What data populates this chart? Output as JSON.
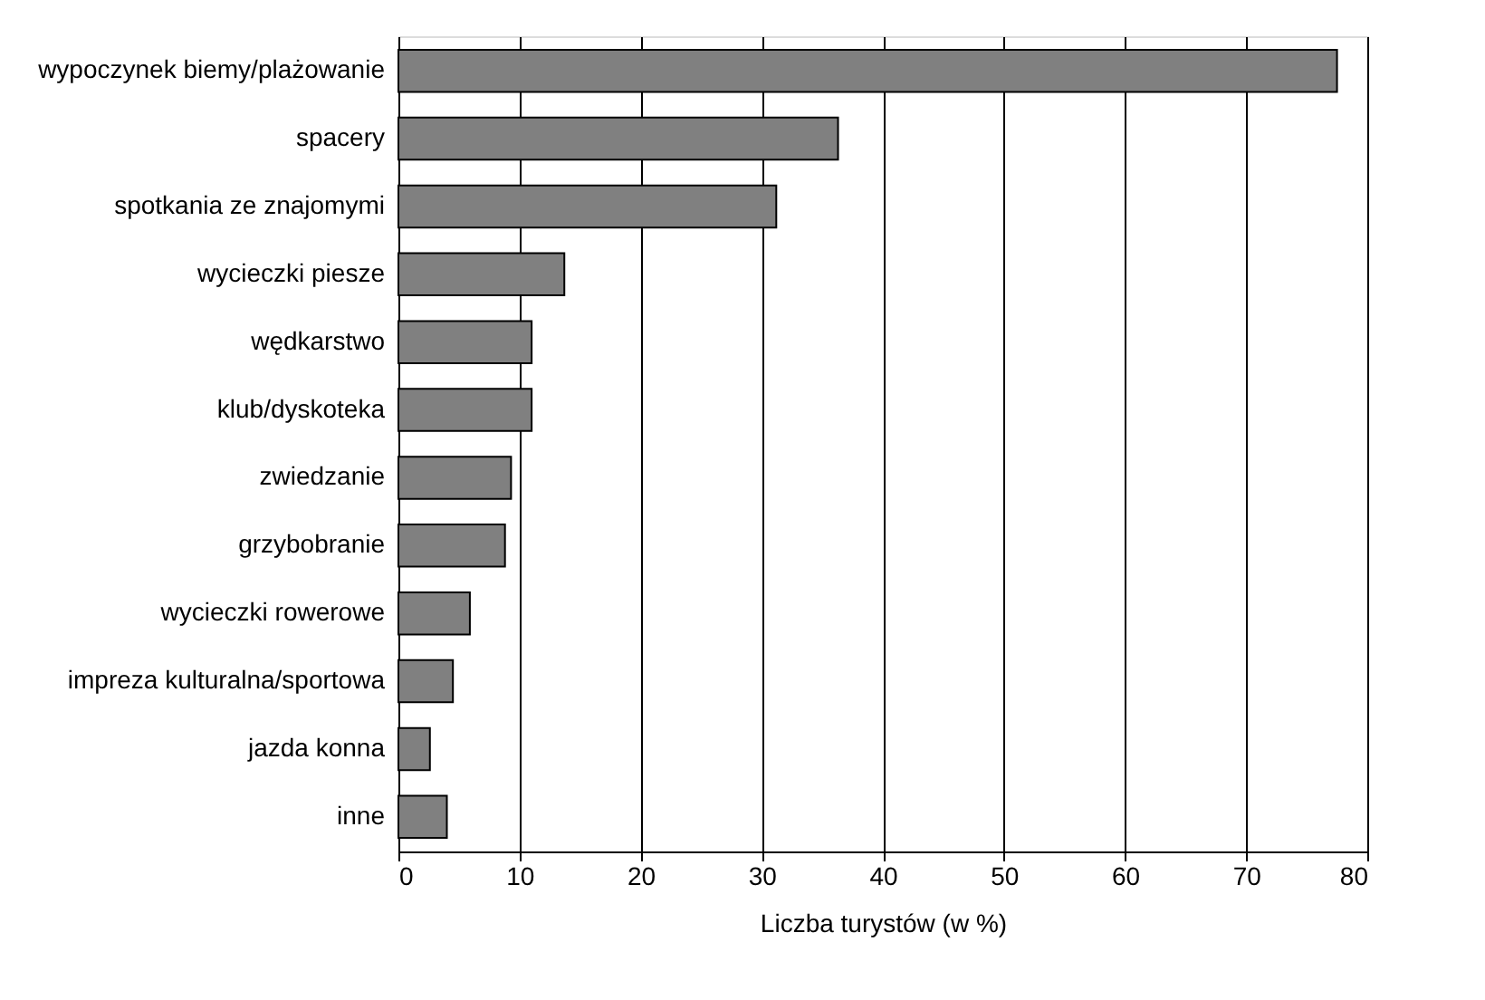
{
  "chart_data": {
    "type": "bar",
    "orientation": "horizontal",
    "xlabel": "Liczba turystów (w %)",
    "categories": [
      "wypoczynek biemy/plażowanie",
      "spacery",
      "spotkania ze znajomymi",
      "wycieczki piesze",
      "wędkarstwo",
      "klub/dyskoteka",
      "zwiedzanie ",
      "grzybobranie",
      "wycieczki rowerowe",
      "impreza kulturalna/sportowa",
      "jazda konna",
      "inne"
    ],
    "values": [
      77.5,
      36.3,
      31.2,
      13.7,
      11.0,
      11.0,
      9.3,
      8.8,
      5.9,
      4.5,
      2.6,
      4.0
    ],
    "color": "#808080",
    "xlim": [
      0,
      80
    ],
    "xticks": [
      0,
      10,
      20,
      30,
      40,
      50,
      60,
      70,
      80
    ],
    "grid": "x"
  }
}
